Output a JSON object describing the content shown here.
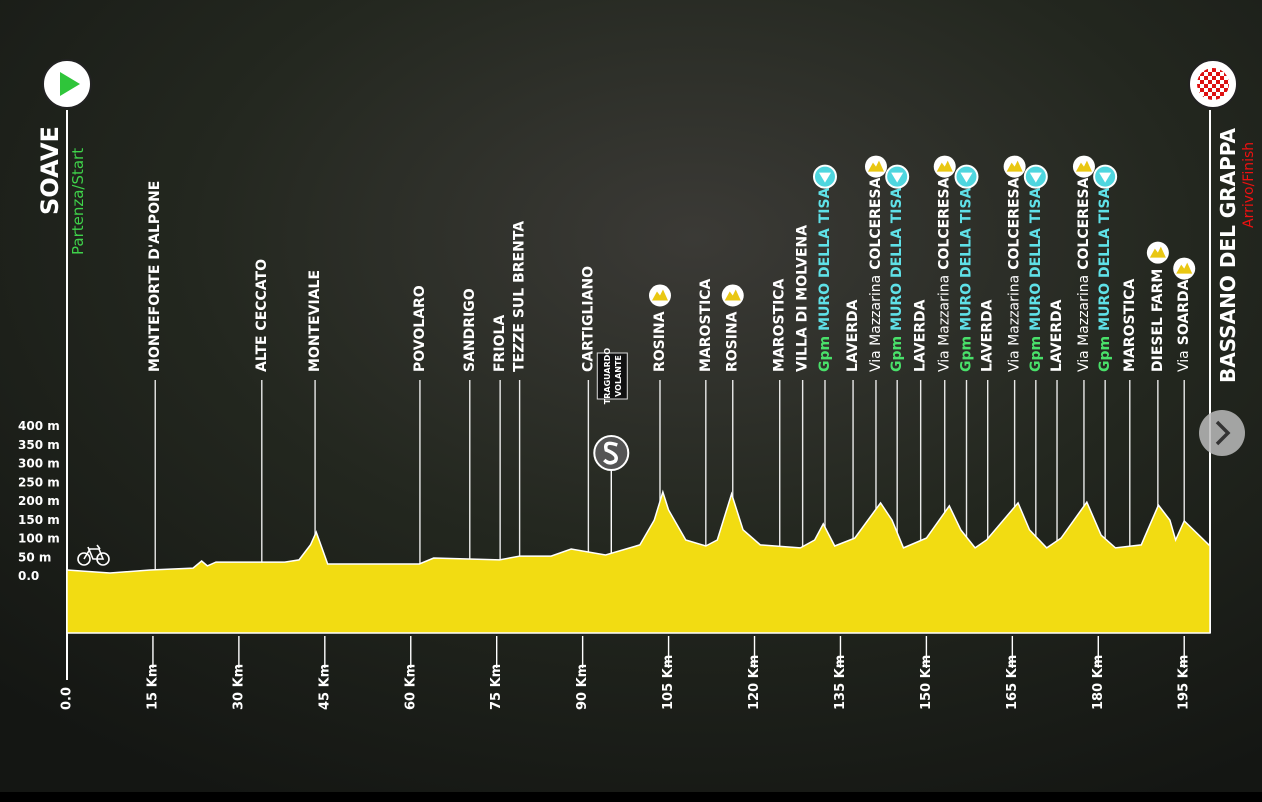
{
  "chart_data": {
    "type": "area",
    "color": "#f2dc12",
    "start": {
      "name": "SOAVE",
      "sub": "Partenza/Start"
    },
    "finish": {
      "name": "BASSANO DEL GRAPPA",
      "sub": "Arrivo/Finish"
    },
    "xlim": [
      0,
      199.5
    ],
    "ylim": [
      0,
      400
    ],
    "yticks": [
      {
        "value": 0,
        "label": "0.0"
      },
      {
        "value": 50,
        "label": "50 m"
      },
      {
        "value": 100,
        "label": "100 m"
      },
      {
        "value": 150,
        "label": "150 m"
      },
      {
        "value": 200,
        "label": "200 m"
      },
      {
        "value": 250,
        "label": "250 m"
      },
      {
        "value": 300,
        "label": "300 m"
      },
      {
        "value": 350,
        "label": "350 m"
      },
      {
        "value": 400,
        "label": "400 m"
      }
    ],
    "xticks": [
      {
        "value": 0,
        "label": "0.0"
      },
      {
        "value": 15,
        "label": "15 Km"
      },
      {
        "value": 30,
        "label": "30 Km"
      },
      {
        "value": 45,
        "label": "45 Km"
      },
      {
        "value": 60,
        "label": "60 Km"
      },
      {
        "value": 75,
        "label": "75 Km"
      },
      {
        "value": 90,
        "label": "90 Km"
      },
      {
        "value": 105,
        "label": "105 Km"
      },
      {
        "value": 120,
        "label": "120 Km"
      },
      {
        "value": 135,
        "label": "135 Km"
      },
      {
        "value": 150,
        "label": "150 Km"
      },
      {
        "value": 165,
        "label": "165 Km"
      },
      {
        "value": 180,
        "label": "180 Km"
      },
      {
        "value": 195,
        "label": "195 Km"
      }
    ],
    "x": [
      0,
      7.5,
      14.5,
      22,
      23.5,
      24.5,
      26,
      38,
      40.5,
      42.5,
      43.5,
      44,
      45.5,
      61.5,
      64,
      75.5,
      79,
      84.5,
      88,
      94,
      100,
      102.5,
      104,
      105,
      108,
      111.5,
      113.5,
      116,
      118,
      121,
      128,
      130.5,
      132,
      134,
      137.5,
      142,
      144,
      146,
      150,
      154,
      156,
      158.5,
      160.5,
      166,
      168,
      171,
      173.5,
      178,
      180.5,
      183,
      187.5,
      190.5,
      192.5,
      193.5,
      195,
      199.5
    ],
    "values": [
      16,
      8,
      16,
      21,
      40,
      27,
      37,
      37,
      43,
      83,
      117,
      96,
      32,
      32,
      48,
      43,
      53,
      53,
      72,
      56,
      83,
      149,
      224,
      176,
      96,
      80,
      96,
      219,
      123,
      83,
      75,
      96,
      139,
      80,
      101,
      195,
      149,
      75,
      101,
      187,
      123,
      75,
      96,
      195,
      123,
      75,
      101,
      197,
      109,
      75,
      83,
      189,
      149,
      96,
      147,
      80
    ],
    "waypoints": [
      {
        "km": 15.4,
        "name": "MONTEFORTE D'ALPONE"
      },
      {
        "km": 34,
        "name": "ALTE CECCATO"
      },
      {
        "km": 43.3,
        "name": "MONTEVIALE"
      },
      {
        "km": 61.6,
        "name": "POVOLARO"
      },
      {
        "km": 70.3,
        "name": "SANDRIGO"
      },
      {
        "km": 75.6,
        "name": "FRIOLA"
      },
      {
        "km": 79,
        "name": "TEZZE SUL BRENTA"
      },
      {
        "km": 91,
        "name": "CARTIGLIANO"
      },
      {
        "km": 103.5,
        "name": "ROSINA",
        "icon": "climb"
      },
      {
        "km": 111.5,
        "name": "MAROSTICA"
      },
      {
        "km": 116.2,
        "name": "ROSINA",
        "icon": "climb"
      },
      {
        "km": 124.4,
        "name": "MAROSTICA"
      },
      {
        "km": 128.4,
        "name": "VILLA DI MOLVENA"
      },
      {
        "km": 132.3,
        "prefix": "Gpm",
        "name": "MURO DELLA TISA",
        "icon": "descent"
      },
      {
        "km": 137.2,
        "name": "LAVERDA"
      },
      {
        "km": 141.2,
        "prefix": "Via Mazzarina",
        "name": "COLCERESA",
        "icon": "climb"
      },
      {
        "km": 144.9,
        "prefix": "Gpm",
        "name": "MURO DELLA TISA",
        "icon": "descent"
      },
      {
        "km": 149,
        "name": "LAVERDA"
      },
      {
        "km": 153.2,
        "prefix": "Via Mazzarina",
        "name": "COLCERESA",
        "icon": "climb"
      },
      {
        "km": 157,
        "prefix": "Gpm",
        "name": "MURO DELLA TISA",
        "icon": "descent"
      },
      {
        "km": 160.7,
        "name": "LAVERDA"
      },
      {
        "km": 165.4,
        "prefix": "Via Mazzarina",
        "name": "COLCERESA",
        "icon": "climb"
      },
      {
        "km": 169.1,
        "prefix": "Gpm",
        "name": "MURO DELLA TISA",
        "icon": "descent"
      },
      {
        "km": 172.8,
        "name": "LAVERDA"
      },
      {
        "km": 177.5,
        "prefix": "Via Mazzarina",
        "name": "COLCERESA",
        "icon": "climb"
      },
      {
        "km": 181.2,
        "prefix": "Gpm",
        "name": "MURO DELLA TISA",
        "icon": "descent"
      },
      {
        "km": 185.5,
        "name": "MAROSTICA"
      },
      {
        "km": 190.4,
        "name": "DIESEL FARM",
        "icon": "climb"
      },
      {
        "km": 195,
        "prefix": "Via",
        "name": "SOARDA",
        "icon": "climb"
      }
    ],
    "sprint": {
      "km": 95,
      "lines": [
        "TRAGUARDO",
        "VOLANTE"
      ]
    }
  }
}
